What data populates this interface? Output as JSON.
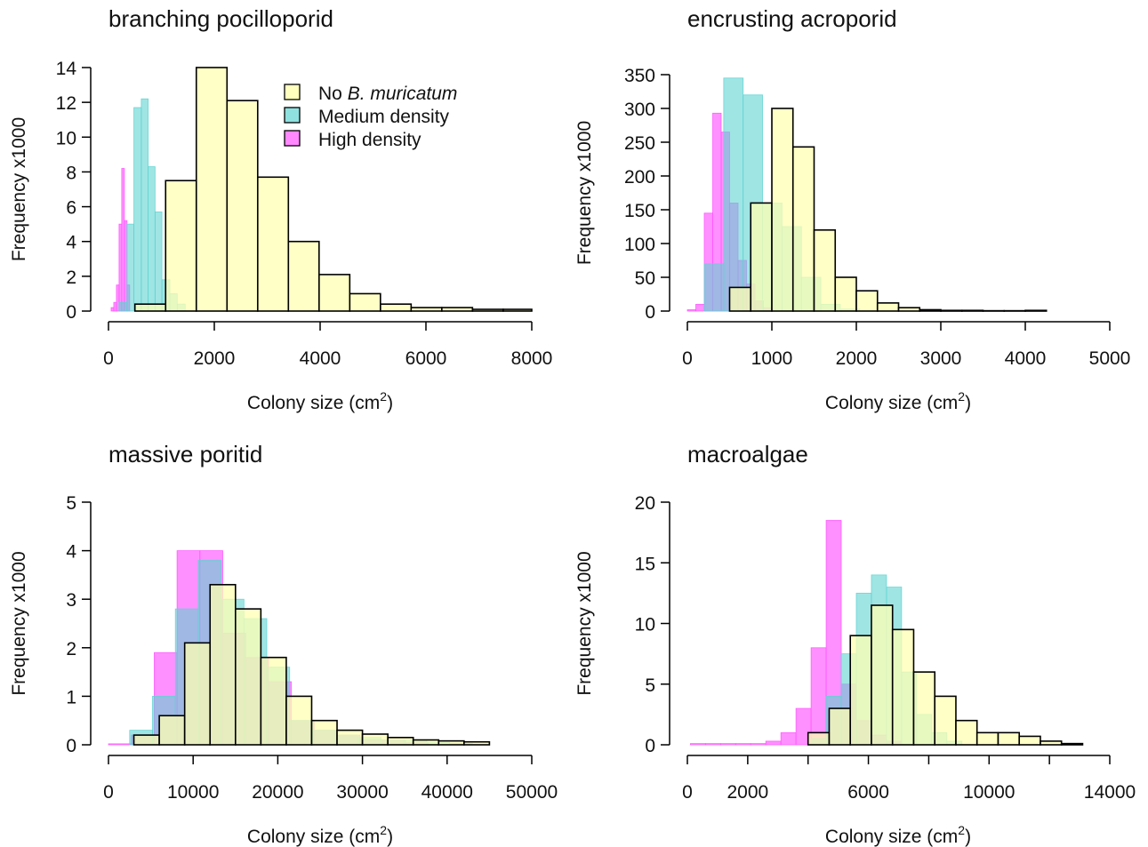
{
  "colors": {
    "none": "#ffffb3",
    "medium": "#5fd4d2",
    "high": "#ff55ff",
    "outline": "#000000"
  },
  "legend": {
    "items": [
      {
        "key": "none",
        "prefix": "No ",
        "italic": "B. muricatum",
        "suffix": ""
      },
      {
        "key": "medium",
        "prefix": "Medium density",
        "italic": "",
        "suffix": ""
      },
      {
        "key": "high",
        "prefix": "High density",
        "italic": "",
        "suffix": ""
      }
    ]
  },
  "chart_data": [
    {
      "type": "bar",
      "title": "branching pocilloporid",
      "xlabel": "Colony size (cm",
      "xlabel_sup": "2",
      "xlabel_close": ")",
      "ylabel": "Frequency x1000",
      "xlim": [
        0,
        8000
      ],
      "ylim": [
        0,
        14
      ],
      "xticks": [
        0,
        2000,
        4000,
        6000,
        8000
      ],
      "yticks": [
        0,
        2,
        4,
        6,
        8,
        10,
        12,
        14
      ],
      "legend": "top-right",
      "series": [
        {
          "key": "high",
          "name": "High density",
          "x0": [
            50,
            100,
            150,
            200,
            250,
            300,
            350
          ],
          "x1": [
            100,
            150,
            200,
            250,
            300,
            350,
            400
          ],
          "values": [
            0.2,
            0.5,
            1.5,
            5.0,
            8.2,
            5.2,
            1.5
          ]
        },
        {
          "key": "medium",
          "name": "Medium density",
          "x0": [
            200,
            350,
            480,
            620,
            750,
            880,
            1010,
            1160,
            1300
          ],
          "x1": [
            350,
            480,
            620,
            750,
            880,
            1010,
            1160,
            1300,
            1450
          ],
          "values": [
            0.5,
            5.0,
            11.7,
            12.2,
            8.3,
            5.7,
            1.8,
            1.0,
            0.4
          ]
        },
        {
          "key": "none",
          "name": "No B. muricatum",
          "x0": [
            500,
            1080,
            1660,
            2240,
            2820,
            3400,
            3980,
            4560,
            5140,
            5720,
            6300,
            6880,
            7460
          ],
          "x1": [
            1080,
            1660,
            2240,
            2820,
            3400,
            3980,
            4560,
            5140,
            5720,
            6300,
            6880,
            7460,
            8000
          ],
          "values": [
            0.4,
            7.5,
            14.0,
            12.1,
            7.7,
            4.0,
            2.1,
            1.0,
            0.4,
            0.2,
            0.2,
            0.1,
            0.1
          ]
        }
      ]
    },
    {
      "type": "bar",
      "title": "encrusting acroporid",
      "xlabel": "Colony size (cm",
      "xlabel_sup": "2",
      "xlabel_close": ")",
      "ylabel": "Frequency x1000",
      "xlim": [
        0,
        5000
      ],
      "ylim": [
        0,
        350
      ],
      "xticks": [
        0,
        1000,
        2000,
        3000,
        4000,
        5000
      ],
      "yticks": [
        0,
        50,
        100,
        150,
        200,
        250,
        300,
        350
      ],
      "series": [
        {
          "key": "high",
          "name": "High density",
          "x0": [
            0,
            100,
            200,
            300,
            400,
            500,
            600,
            700,
            800,
            900
          ],
          "x1": [
            100,
            200,
            300,
            400,
            500,
            600,
            700,
            800,
            900,
            1000
          ],
          "values": [
            2,
            10,
            145,
            293,
            265,
            160,
            75,
            40,
            15,
            5
          ]
        },
        {
          "key": "medium",
          "name": "Medium density",
          "x0": [
            200,
            430,
            660,
            890,
            1120,
            1350,
            1580,
            1810
          ],
          "x1": [
            430,
            660,
            890,
            1120,
            1350,
            1580,
            1810,
            2040
          ],
          "values": [
            70,
            345,
            320,
            160,
            125,
            50,
            10,
            3
          ]
        },
        {
          "key": "none",
          "name": "No B. muricatum",
          "x0": [
            500,
            750,
            1000,
            1250,
            1500,
            1750,
            2000,
            2250,
            2500,
            2750,
            3000,
            3250,
            3500,
            3750,
            4000
          ],
          "x1": [
            750,
            1000,
            1250,
            1500,
            1750,
            2000,
            2250,
            2500,
            2750,
            3000,
            3250,
            3500,
            3750,
            4000,
            4250
          ],
          "values": [
            35,
            160,
            300,
            243,
            120,
            50,
            30,
            12,
            5,
            2,
            1,
            1,
            0.5,
            0.5,
            1
          ]
        }
      ]
    },
    {
      "type": "bar",
      "title": "massive poritid",
      "xlabel": "Colony size (cm",
      "xlabel_sup": "2",
      "xlabel_close": ")",
      "ylabel": "Frequency x1000",
      "xlim": [
        0,
        50000
      ],
      "ylim": [
        0,
        5
      ],
      "xticks": [
        0,
        10000,
        20000,
        30000,
        40000,
        50000
      ],
      "yticks": [
        0,
        1,
        2,
        3,
        4,
        5
      ],
      "series": [
        {
          "key": "high",
          "name": "High density",
          "x0": [
            0,
            2700,
            5400,
            8100,
            10800,
            13500,
            16200,
            18900,
            21600,
            24300,
            27000,
            29700,
            32400,
            35100
          ],
          "x1": [
            2700,
            5400,
            8100,
            10800,
            13500,
            16200,
            18900,
            21600,
            24300,
            27000,
            29700,
            32400,
            35100,
            37800
          ],
          "values": [
            0.02,
            0.2,
            1.9,
            4.0,
            4.0,
            2.3,
            1.8,
            1.3,
            0.5,
            0.3,
            0.2,
            0.1,
            0.1,
            0.05
          ]
        },
        {
          "key": "medium",
          "name": "Medium density",
          "x0": [
            2500,
            5200,
            7900,
            10600,
            13300,
            16000,
            18700,
            21400,
            24100,
            26800,
            29500,
            32200,
            34900,
            37600,
            40300
          ],
          "x1": [
            5200,
            7900,
            10600,
            13300,
            16000,
            18700,
            21400,
            24100,
            26800,
            29500,
            32200,
            34900,
            37600,
            40300,
            43000
          ],
          "values": [
            0.3,
            1.0,
            2.8,
            3.8,
            3.0,
            2.6,
            1.6,
            0.5,
            0.3,
            0.2,
            0.15,
            0.1,
            0.1,
            0.05,
            0.03
          ]
        },
        {
          "key": "none",
          "name": "No B. muricatum",
          "x0": [
            3000,
            6000,
            9000,
            12000,
            15000,
            18000,
            21000,
            24000,
            27000,
            30000,
            33000,
            36000,
            39000,
            42000
          ],
          "x1": [
            6000,
            9000,
            12000,
            15000,
            18000,
            21000,
            24000,
            27000,
            30000,
            33000,
            36000,
            39000,
            42000,
            45000
          ],
          "values": [
            0.2,
            0.6,
            2.1,
            3.3,
            2.8,
            1.8,
            1.0,
            0.5,
            0.3,
            0.22,
            0.15,
            0.1,
            0.08,
            0.06
          ]
        }
      ]
    },
    {
      "type": "bar",
      "title": "macroalgae",
      "xlabel": "Colony size (cm",
      "xlabel_sup": "2",
      "xlabel_close": ")",
      "ylabel": "Frequency x1000",
      "xlim": [
        0,
        14000
      ],
      "ylim": [
        0,
        20
      ],
      "xticks": [
        0,
        2000,
        4000,
        6000,
        8000,
        10000,
        12000,
        14000
      ],
      "xtick_labels": [
        "0",
        "2000",
        "",
        "6000",
        "",
        "10000",
        "",
        "14000"
      ],
      "yticks": [
        0,
        5,
        10,
        15,
        20
      ],
      "series": [
        {
          "key": "high",
          "name": "High density",
          "x0": [
            100,
            600,
            1100,
            1600,
            2100,
            2600,
            3100,
            3600,
            4100,
            4600,
            5100,
            5600,
            6100,
            6600
          ],
          "x1": [
            600,
            1100,
            1600,
            2100,
            2600,
            3100,
            3600,
            4100,
            4600,
            5100,
            5600,
            6100,
            6600,
            7100
          ],
          "values": [
            0.1,
            0.1,
            0.1,
            0.1,
            0.1,
            0.3,
            1.0,
            3.0,
            8.0,
            18.5,
            5.0,
            2.0,
            0.8,
            0.3
          ]
        },
        {
          "key": "medium",
          "name": "Medium density",
          "x0": [
            4100,
            4600,
            5100,
            5600,
            6100,
            6600,
            7100,
            7600,
            8100,
            8600
          ],
          "x1": [
            4600,
            5100,
            5600,
            6100,
            6600,
            7100,
            7600,
            8100,
            8600,
            9100
          ],
          "values": [
            0.5,
            4.0,
            7.5,
            12.5,
            14.0,
            13.0,
            6.0,
            2.5,
            1.0,
            0.3
          ]
        },
        {
          "key": "none",
          "name": "No B. muricatum",
          "x0": [
            4000,
            4700,
            5400,
            6100,
            6800,
            7500,
            8200,
            8900,
            9600,
            10300,
            11000,
            11700,
            12400
          ],
          "x1": [
            4700,
            5400,
            6100,
            6800,
            7500,
            8200,
            8900,
            9600,
            10300,
            11000,
            11700,
            12400,
            13100
          ],
          "values": [
            1.0,
            3.0,
            9.0,
            11.5,
            9.5,
            6.0,
            4.0,
            2.0,
            1.0,
            1.0,
            0.7,
            0.3,
            0.1
          ]
        }
      ]
    }
  ]
}
